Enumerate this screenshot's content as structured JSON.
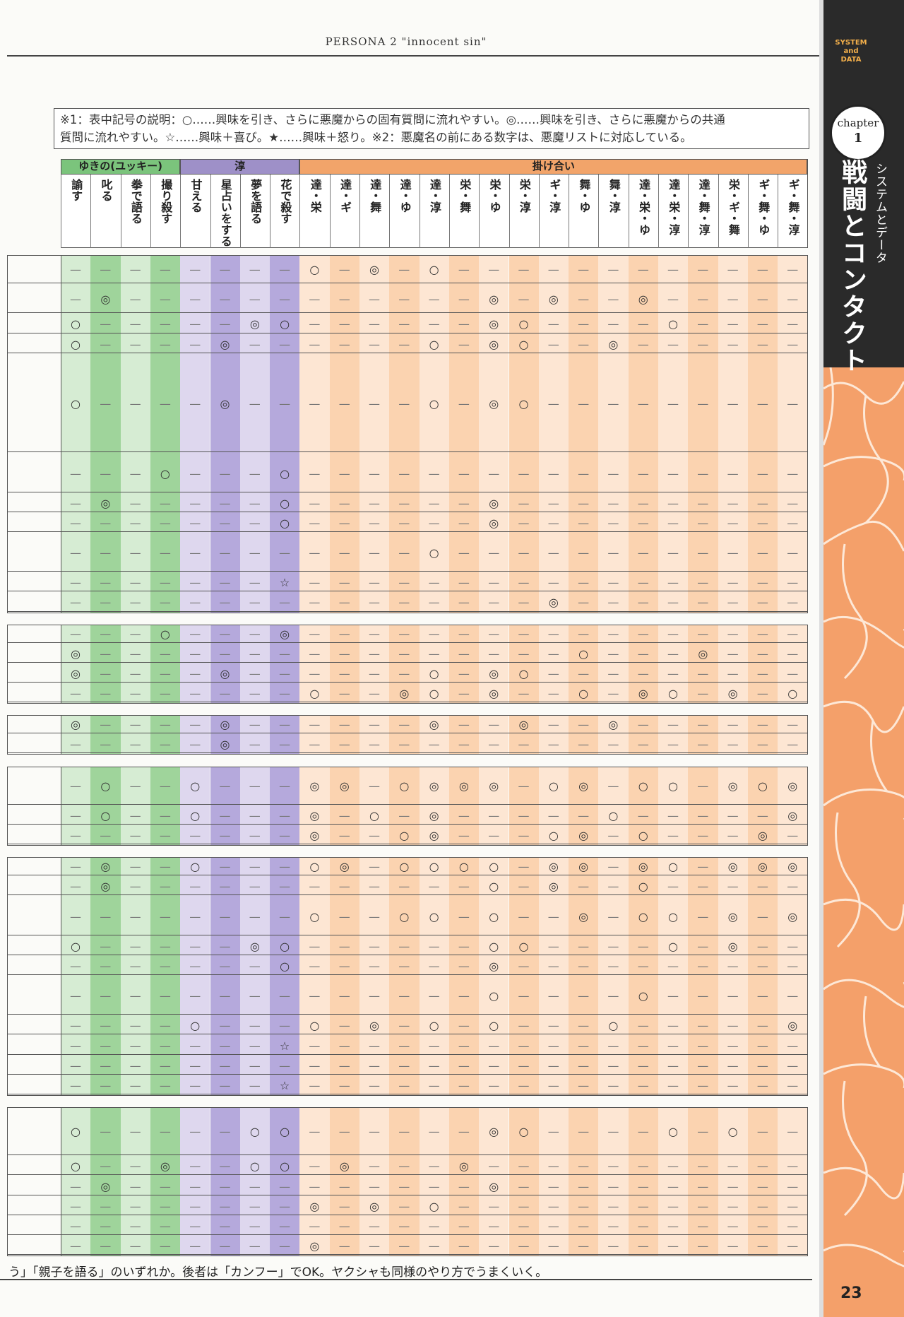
{
  "running_head": "PERSONA 2 \"innocent sin\"",
  "note": {
    "line1": "※1：表中記号の説明：○……興味を引き、さらに悪魔からの固有質問に流れやすい。◎……興味を引き、さらに悪魔からの共通",
    "line2": "質問に流れやすい。☆……興味＋喜び。★……興味＋怒り。※2：悪魔名の前にある数字は、悪魔リストに対応している。"
  },
  "side": {
    "system_label_1": "SYSTEM",
    "system_label_2": "and",
    "system_label_3": "DATA",
    "chapter_word": "chapter",
    "chapter_num": "1",
    "subtitle": "システムとデータ",
    "title": "戦闘とコンタクト"
  },
  "table": {
    "groups": [
      {
        "label": "ゆきの(ユッキー)",
        "color": "#7bc47c"
      },
      {
        "label": "淳",
        "color": "#9e90c8"
      },
      {
        "label": "掛け合い",
        "color": "#f2a46a"
      }
    ],
    "columns": [
      "諭す",
      "叱る",
      "拳で語る",
      "撮り殺す",
      "甘える",
      "星占いをする",
      "夢を語る",
      "花で殺す",
      "達・栄",
      "達・ギ",
      "達・舞",
      "達・ゆ",
      "達・淳",
      "栄・舞",
      "栄・ゆ",
      "栄・淳",
      "ギ・淳",
      "舞・ゆ",
      "舞・淳",
      "達・栄・ゆ",
      "達・栄・淳",
      "達・舞・淳",
      "栄・ギ・舞",
      "ギ・舞・ゆ",
      "ギ・舞・淳"
    ],
    "rows": [
      [
        "—",
        "—",
        "—",
        "—",
        "—",
        "—",
        "—",
        "—",
        "○",
        "—",
        "◎",
        "—",
        "○",
        "—",
        "—",
        "—",
        "—",
        "—",
        "—",
        "—",
        "—",
        "—",
        "—",
        "—",
        "—"
      ],
      [
        "—",
        "◎",
        "—",
        "—",
        "—",
        "—",
        "—",
        "—",
        "—",
        "—",
        "—",
        "—",
        "—",
        "—",
        "◎",
        "—",
        "◎",
        "—",
        "—",
        "◎",
        "—",
        "—",
        "—",
        "—",
        "—"
      ],
      [
        "○",
        "—",
        "—",
        "—",
        "—",
        "—",
        "◎",
        "○",
        "—",
        "—",
        "—",
        "—",
        "—",
        "—",
        "◎",
        "○",
        "—",
        "—",
        "—",
        "—",
        "○",
        "—",
        "—",
        "—",
        "—"
      ],
      [
        "○",
        "—",
        "—",
        "—",
        "—",
        "◎",
        "—",
        "—",
        "—",
        "—",
        "—",
        "—",
        "○",
        "—",
        "◎",
        "○",
        "—",
        "—",
        "◎",
        "—",
        "—",
        "—",
        "—",
        "—",
        "—"
      ],
      [
        "○",
        "—",
        "—",
        "—",
        "—",
        "◎",
        "—",
        "—",
        "—",
        "—",
        "—",
        "—",
        "○",
        "—",
        "◎",
        "○",
        "—",
        "—",
        "—",
        "—",
        "—",
        "—",
        "—",
        "—",
        "—"
      ],
      [
        "—",
        "—",
        "—",
        "○",
        "—",
        "—",
        "—",
        "○",
        "—",
        "—",
        "—",
        "—",
        "—",
        "—",
        "—",
        "—",
        "—",
        "—",
        "—",
        "—",
        "—",
        "—",
        "—",
        "—",
        "—"
      ],
      [
        "—",
        "◎",
        "—",
        "—",
        "—",
        "—",
        "—",
        "○",
        "—",
        "—",
        "—",
        "—",
        "—",
        "—",
        "◎",
        "—",
        "—",
        "—",
        "—",
        "—",
        "—",
        "—",
        "—",
        "—",
        "—"
      ],
      [
        "—",
        "—",
        "—",
        "—",
        "—",
        "—",
        "—",
        "○",
        "—",
        "—",
        "—",
        "—",
        "—",
        "—",
        "◎",
        "—",
        "—",
        "—",
        "—",
        "—",
        "—",
        "—",
        "—",
        "—",
        "—"
      ],
      [
        "—",
        "—",
        "—",
        "—",
        "—",
        "—",
        "—",
        "—",
        "—",
        "—",
        "—",
        "—",
        "○",
        "—",
        "—",
        "—",
        "—",
        "—",
        "—",
        "—",
        "—",
        "—",
        "—",
        "—",
        "—"
      ],
      [
        "—",
        "—",
        "—",
        "—",
        "—",
        "—",
        "—",
        "☆",
        "—",
        "—",
        "—",
        "—",
        "—",
        "—",
        "—",
        "—",
        "—",
        "—",
        "—",
        "—",
        "—",
        "—",
        "—",
        "—",
        "—"
      ],
      [
        "—",
        "—",
        "—",
        "—",
        "—",
        "—",
        "—",
        "—",
        "—",
        "—",
        "—",
        "—",
        "—",
        "—",
        "—",
        "—",
        "◎",
        "—",
        "—",
        "—",
        "—",
        "—",
        "—",
        "—",
        "—"
      ],
      [
        "—",
        "—",
        "—",
        "○",
        "—",
        "—",
        "—",
        "◎",
        "—",
        "—",
        "—",
        "—",
        "—",
        "—",
        "—",
        "—",
        "—",
        "—",
        "—",
        "—",
        "—",
        "—",
        "—",
        "—",
        "—"
      ],
      [
        "◎",
        "—",
        "—",
        "—",
        "—",
        "—",
        "—",
        "—",
        "—",
        "—",
        "—",
        "—",
        "—",
        "—",
        "—",
        "—",
        "—",
        "○",
        "—",
        "—",
        "—",
        "◎",
        "—",
        "—",
        "—"
      ],
      [
        "◎",
        "—",
        "—",
        "—",
        "—",
        "◎",
        "—",
        "—",
        "—",
        "—",
        "—",
        "—",
        "○",
        "—",
        "◎",
        "○",
        "—",
        "—",
        "—",
        "—",
        "—",
        "—",
        "—",
        "—",
        "—"
      ],
      [
        "—",
        "—",
        "—",
        "—",
        "—",
        "—",
        "—",
        "—",
        "○",
        "—",
        "—",
        "◎",
        "○",
        "—",
        "◎",
        "—",
        "—",
        "○",
        "—",
        "◎",
        "○",
        "—",
        "◎",
        "—",
        "○"
      ],
      [
        "◎",
        "—",
        "—",
        "—",
        "—",
        "◎",
        "—",
        "—",
        "—",
        "—",
        "—",
        "—",
        "◎",
        "—",
        "—",
        "◎",
        "—",
        "—",
        "◎",
        "—",
        "—",
        "—",
        "—",
        "—",
        "—"
      ],
      [
        "—",
        "—",
        "—",
        "—",
        "—",
        "◎",
        "—",
        "—",
        "—",
        "—",
        "—",
        "—",
        "—",
        "—",
        "—",
        "—",
        "—",
        "—",
        "—",
        "—",
        "—",
        "—",
        "—",
        "—",
        "—"
      ],
      [
        "—",
        "○",
        "—",
        "—",
        "○",
        "—",
        "—",
        "—",
        "◎",
        "◎",
        "—",
        "○",
        "◎",
        "◎",
        "◎",
        "—",
        "○",
        "◎",
        "—",
        "○",
        "○",
        "—",
        "◎",
        "○",
        "◎"
      ],
      [
        "—",
        "○",
        "—",
        "—",
        "○",
        "—",
        "—",
        "—",
        "◎",
        "—",
        "○",
        "—",
        "◎",
        "—",
        "—",
        "—",
        "—",
        "—",
        "○",
        "—",
        "—",
        "—",
        "—",
        "—",
        "◎"
      ],
      [
        "—",
        "—",
        "—",
        "—",
        "—",
        "—",
        "—",
        "—",
        "◎",
        "—",
        "—",
        "○",
        "◎",
        "—",
        "—",
        "—",
        "○",
        "◎",
        "—",
        "○",
        "—",
        "—",
        "—",
        "◎",
        "—"
      ],
      [
        "—",
        "◎",
        "—",
        "—",
        "○",
        "—",
        "—",
        "—",
        "○",
        "◎",
        "—",
        "○",
        "○",
        "○",
        "○",
        "—",
        "◎",
        "◎",
        "—",
        "◎",
        "○",
        "—",
        "◎",
        "◎",
        "◎"
      ],
      [
        "—",
        "◎",
        "—",
        "—",
        "—",
        "—",
        "—",
        "—",
        "—",
        "—",
        "—",
        "—",
        "—",
        "—",
        "○",
        "—",
        "◎",
        "—",
        "—",
        "○",
        "—",
        "—",
        "—",
        "—",
        "—"
      ],
      [
        "—",
        "—",
        "—",
        "—",
        "—",
        "—",
        "—",
        "—",
        "○",
        "—",
        "—",
        "○",
        "○",
        "—",
        "○",
        "—",
        "—",
        "◎",
        "—",
        "○",
        "○",
        "—",
        "◎",
        "—",
        "◎"
      ],
      [
        "○",
        "—",
        "—",
        "—",
        "—",
        "—",
        "◎",
        "○",
        "—",
        "—",
        "—",
        "—",
        "—",
        "—",
        "○",
        "○",
        "—",
        "—",
        "—",
        "—",
        "○",
        "—",
        "◎",
        "—",
        "—"
      ],
      [
        "—",
        "—",
        "—",
        "—",
        "—",
        "—",
        "—",
        "○",
        "—",
        "—",
        "—",
        "—",
        "—",
        "—",
        "◎",
        "—",
        "—",
        "—",
        "—",
        "—",
        "—",
        "—",
        "—",
        "—",
        "—"
      ],
      [
        "—",
        "—",
        "—",
        "—",
        "—",
        "—",
        "—",
        "—",
        "—",
        "—",
        "—",
        "—",
        "—",
        "—",
        "○",
        "—",
        "—",
        "—",
        "—",
        "○",
        "—",
        "—",
        "—",
        "—",
        "—"
      ],
      [
        "—",
        "—",
        "—",
        "—",
        "○",
        "—",
        "—",
        "—",
        "○",
        "—",
        "◎",
        "—",
        "○",
        "—",
        "○",
        "—",
        "—",
        "—",
        "○",
        "—",
        "—",
        "—",
        "—",
        "—",
        "◎"
      ],
      [
        "—",
        "—",
        "—",
        "—",
        "—",
        "—",
        "—",
        "☆",
        "—",
        "—",
        "—",
        "—",
        "—",
        "—",
        "—",
        "—",
        "—",
        "—",
        "—",
        "—",
        "—",
        "—",
        "—",
        "—",
        "—"
      ],
      [
        "—",
        "—",
        "—",
        "—",
        "—",
        "—",
        "—",
        "—",
        "—",
        "—",
        "—",
        "—",
        "—",
        "—",
        "—",
        "—",
        "—",
        "—",
        "—",
        "—",
        "—",
        "—",
        "—",
        "—",
        "—"
      ],
      [
        "—",
        "—",
        "—",
        "—",
        "—",
        "—",
        "—",
        "☆",
        "—",
        "—",
        "—",
        "—",
        "—",
        "—",
        "—",
        "—",
        "—",
        "—",
        "—",
        "—",
        "—",
        "—",
        "—",
        "—",
        "—"
      ],
      [
        "○",
        "—",
        "—",
        "—",
        "—",
        "—",
        "○",
        "○",
        "—",
        "—",
        "—",
        "—",
        "—",
        "—",
        "◎",
        "○",
        "—",
        "—",
        "—",
        "—",
        "○",
        "—",
        "○",
        "—",
        "—"
      ],
      [
        "○",
        "—",
        "—",
        "◎",
        "—",
        "—",
        "○",
        "○",
        "—",
        "◎",
        "—",
        "—",
        "—",
        "◎",
        "—",
        "—",
        "—",
        "—",
        "—",
        "—",
        "—",
        "—",
        "—",
        "—",
        "—"
      ],
      [
        "—",
        "◎",
        "—",
        "—",
        "—",
        "—",
        "—",
        "—",
        "—",
        "—",
        "—",
        "—",
        "—",
        "—",
        "◎",
        "—",
        "—",
        "—",
        "—",
        "—",
        "—",
        "—",
        "—",
        "—",
        "—"
      ],
      [
        "—",
        "—",
        "—",
        "—",
        "—",
        "—",
        "—",
        "—",
        "◎",
        "—",
        "◎",
        "—",
        "○",
        "—",
        "—",
        "—",
        "—",
        "—",
        "—",
        "—",
        "—",
        "—",
        "—",
        "—",
        "—"
      ],
      [
        "—",
        "—",
        "—",
        "—",
        "—",
        "—",
        "—",
        "—",
        "—",
        "—",
        "—",
        "—",
        "—",
        "—",
        "—",
        "—",
        "—",
        "—",
        "—",
        "—",
        "—",
        "—",
        "—",
        "—",
        "—"
      ],
      [
        "—",
        "—",
        "—",
        "—",
        "—",
        "—",
        "—",
        "—",
        "◎",
        "—",
        "—",
        "—",
        "—",
        "—",
        "—",
        "—",
        "—",
        "—",
        "—",
        "—",
        "—",
        "—",
        "—",
        "—",
        "—"
      ]
    ]
  },
  "footer": {
    "text": "う」「親子を語る」のいずれか。後者は「カンフー」でOK。ヤクシャも同様のやり方でうまくいく。",
    "page_number": "23"
  }
}
